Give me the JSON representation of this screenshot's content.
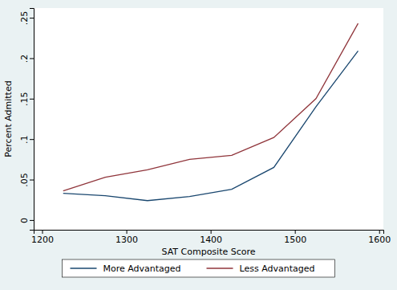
{
  "chart_data": {
    "type": "line",
    "x_label": "SAT Composite Score",
    "y_label": "Percent Admitted",
    "x": [
      1225,
      1275,
      1325,
      1375,
      1425,
      1475,
      1525,
      1575
    ],
    "series": [
      {
        "name": "More Advantaged",
        "color": "#1a476f",
        "values": [
          0.033,
          0.03,
          0.024,
          0.029,
          0.038,
          0.065,
          0.14,
          0.209
        ]
      },
      {
        "name": "Less Advantaged",
        "color": "#90353b",
        "values": [
          0.036,
          0.053,
          0.062,
          0.075,
          0.08,
          0.102,
          0.15,
          0.243
        ]
      }
    ],
    "xlim": [
      1190,
      1605
    ],
    "xticks": [
      1200,
      1300,
      1400,
      1500,
      1600
    ],
    "ylim": [
      -0.012,
      0.262
    ],
    "yticks": [
      0,
      {
        "value": 0.05,
        "label": ".05"
      },
      {
        "value": 0.1,
        "label": ".1"
      },
      {
        "value": 0.15,
        "label": ".15"
      },
      {
        "value": 0.2,
        "label": ".2"
      },
      {
        "value": 0.25,
        "label": ".25"
      }
    ],
    "grid": false,
    "legend": "bottom"
  }
}
